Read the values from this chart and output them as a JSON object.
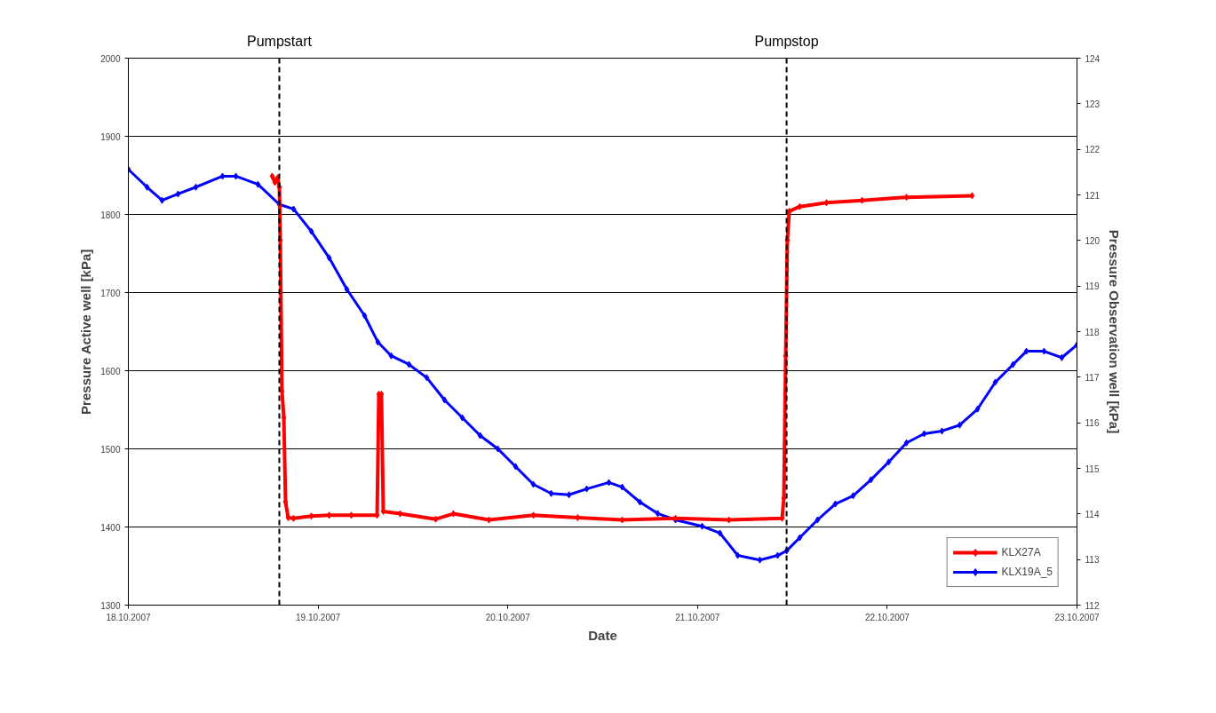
{
  "chart_data": {
    "type": "line",
    "xlabel": "Date",
    "ylabel": "Pressure Active well [kPa]",
    "y2label": "Pressure Observation well [kPa]",
    "xlim": [
      "2007-10-18",
      "2007-10-23"
    ],
    "xticks": [
      {
        "value": "2007-10-18",
        "label": "18.10.2007"
      },
      {
        "value": "2007-10-19",
        "label": "19.10.2007"
      },
      {
        "value": "2007-10-20",
        "label": "20.10.2007"
      },
      {
        "value": "2007-10-21",
        "label": "21.10.2007"
      },
      {
        "value": "2007-10-22",
        "label": "22.10.2007"
      },
      {
        "value": "2007-10-23",
        "label": "23.10.2007"
      }
    ],
    "ylim": [
      1300,
      2000
    ],
    "yticks": [
      1300,
      1400,
      1500,
      1600,
      1700,
      1800,
      1900,
      2000
    ],
    "y2lim": [
      112,
      124
    ],
    "y2ticks": [
      112,
      113,
      114,
      115,
      116,
      117,
      118,
      119,
      120,
      121,
      122,
      123,
      124
    ],
    "grid": "y",
    "legend": "bottom right",
    "marker": "diamond",
    "line_style": "solid",
    "ref_lines": [
      {
        "axis": "x",
        "value": "2007-10-18T19:06",
        "label": "Pumpstart",
        "color": "#000000",
        "line_style": "dashed"
      },
      {
        "axis": "x",
        "value": "2007-10-21T11:16",
        "label": "Pumpstop",
        "color": "#000000",
        "line_style": "dashed"
      }
    ],
    "series": [
      {
        "name": "KLX27A",
        "color": "#ff0000",
        "x": [
          "2007-10-18T18:12",
          "2007-10-18T18:32",
          "2007-10-18T18:53",
          "2007-10-18T19:06",
          "2007-10-18T19:13",
          "2007-10-18T19:26",
          "2007-10-18T19:40",
          "2007-10-18T19:53",
          "2007-10-18T20:13",
          "2007-10-18T20:54",
          "2007-10-18T23:09",
          "2007-10-19T01:24",
          "2007-10-19T04:12",
          "2007-10-19T07:28",
          "2007-10-19T07:41",
          "2007-10-19T08:01",
          "2007-10-19T08:15",
          "2007-10-19T10:23",
          "2007-10-19T14:53",
          "2007-10-19T17:07",
          "2007-10-19T21:37",
          "2007-10-20T03:14",
          "2007-10-20T08:51",
          "2007-10-20T14:28",
          "2007-10-20T21:13",
          "2007-10-21T03:58",
          "2007-10-21T10:42",
          "2007-10-21T10:55",
          "2007-10-21T11:09",
          "2007-10-21T11:22",
          "2007-10-21T11:36",
          "2007-10-21T12:56",
          "2007-10-21T16:19",
          "2007-10-21T20:49",
          "2007-10-22T02:26",
          "2007-10-22T10:44"
        ],
        "values": [
          1849,
          1841,
          1847,
          1835,
          1767,
          1574,
          1540,
          1432,
          1412,
          1411,
          1414,
          1415,
          1415,
          1415,
          1570,
          1570,
          1420,
          1417,
          1410,
          1417,
          1409,
          1415,
          1412,
          1409,
          1411,
          1409,
          1411,
          1437,
          1619,
          1767,
          1804,
          1810,
          1815,
          1818,
          1822,
          1824
        ]
      },
      {
        "name": "KLX19A_5",
        "color": "#0000ff",
        "axis": "y2",
        "x": [
          "2007-10-18T00:00",
          "2007-10-18T02:22",
          "2007-10-18T04:16",
          "2007-10-18T06:17",
          "2007-10-18T08:32",
          "2007-10-18T11:55",
          "2007-10-18T13:36",
          "2007-10-18T16:24",
          "2007-10-18T19:06",
          "2007-10-18T20:54",
          "2007-10-18T23:09",
          "2007-10-19T01:24",
          "2007-10-19T03:38",
          "2007-10-19T05:53",
          "2007-10-19T07:34",
          "2007-10-19T09:15",
          "2007-10-19T11:30",
          "2007-10-19T13:45",
          "2007-10-19T16:00",
          "2007-10-19T18:15",
          "2007-10-19T20:30",
          "2007-10-19T22:44",
          "2007-10-20T00:59",
          "2007-10-20T03:14",
          "2007-10-20T05:29",
          "2007-10-20T07:44",
          "2007-10-20T09:59",
          "2007-10-20T12:47",
          "2007-10-20T14:28",
          "2007-10-20T16:43",
          "2007-10-20T18:58",
          "2007-10-20T21:13",
          "2007-10-21T00:35",
          "2007-10-21T02:50",
          "2007-10-21T05:05",
          "2007-10-21T07:53",
          "2007-10-21T10:08",
          "2007-10-21T11:16",
          "2007-10-21T12:56",
          "2007-10-21T15:11",
          "2007-10-21T17:26",
          "2007-10-21T19:41",
          "2007-10-21T21:56",
          "2007-10-22T00:11",
          "2007-10-22T02:26",
          "2007-10-22T04:40",
          "2007-10-22T06:55",
          "2007-10-22T09:10",
          "2007-10-22T11:25",
          "2007-10-22T13:40",
          "2007-10-22T15:55",
          "2007-10-22T17:36",
          "2007-10-22T19:50",
          "2007-10-22T22:05",
          "2007-10-23T00:00"
        ],
        "values": [
          121.56,
          121.17,
          120.88,
          121.02,
          121.17,
          121.41,
          121.41,
          121.23,
          120.79,
          120.69,
          120.2,
          119.62,
          118.93,
          118.35,
          117.77,
          117.47,
          117.28,
          116.99,
          116.5,
          116.11,
          115.72,
          115.43,
          115.04,
          114.65,
          114.45,
          114.42,
          114.55,
          114.69,
          114.59,
          114.26,
          114.01,
          113.87,
          113.73,
          113.58,
          113.09,
          112.99,
          113.09,
          113.19,
          113.48,
          113.87,
          114.22,
          114.4,
          114.75,
          115.14,
          115.56,
          115.76,
          115.82,
          115.95,
          116.3,
          116.89,
          117.28,
          117.57,
          117.57,
          117.43,
          117.71
        ]
      }
    ]
  }
}
